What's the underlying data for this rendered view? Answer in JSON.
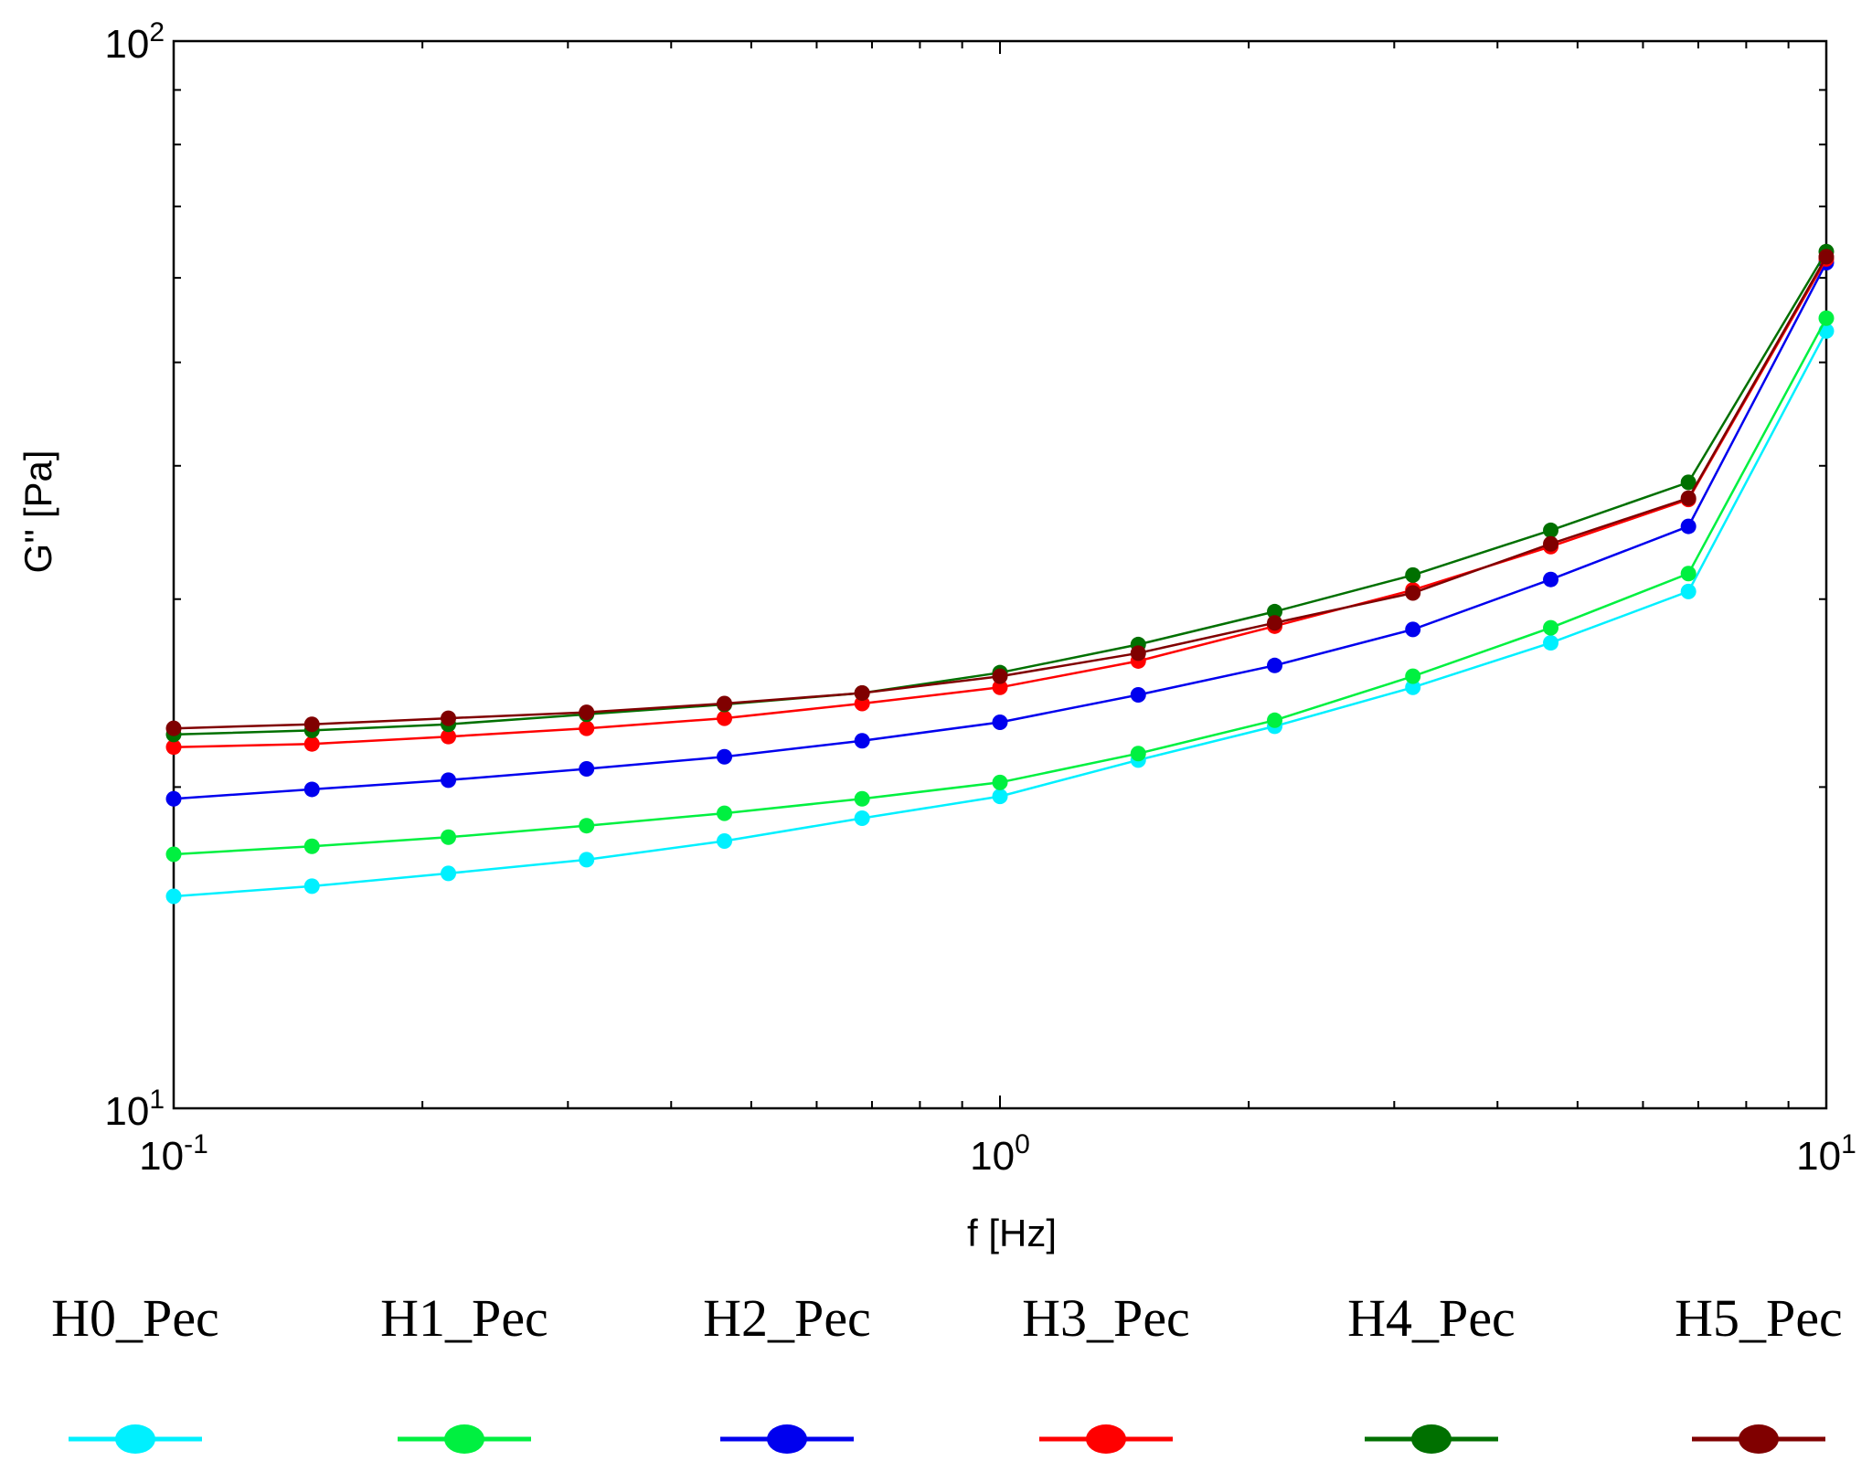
{
  "chart_data": {
    "type": "line",
    "title": "",
    "xlabel": "f [Hz]",
    "ylabel": "G'' [Pa]",
    "xscale": "log",
    "yscale": "log",
    "xlim": [
      0.1,
      10
    ],
    "ylim": [
      10,
      100
    ],
    "x_ticks": [
      {
        "base": "10",
        "exp": "-1",
        "value": 0.1
      },
      {
        "base": "10",
        "exp": "0",
        "value": 1
      },
      {
        "base": "10",
        "exp": "1",
        "value": 10
      }
    ],
    "y_ticks": [
      {
        "base": "10",
        "exp": "1",
        "value": 10
      },
      {
        "base": "10",
        "exp": "2",
        "value": 100
      }
    ],
    "x": [
      0.1,
      0.147,
      0.215,
      0.316,
      0.464,
      0.681,
      1.0,
      1.47,
      2.15,
      3.16,
      4.64,
      6.81,
      10.0
    ],
    "legend_position": "bottom",
    "series": [
      {
        "name": "H0_Pec",
        "color": "#00f0ff",
        "values": [
          15.8,
          16.15,
          16.6,
          17.1,
          17.8,
          18.7,
          19.6,
          21.2,
          22.8,
          24.8,
          27.3,
          30.5,
          53.5
        ]
      },
      {
        "name": "H1_Pec",
        "color": "#00f040",
        "values": [
          17.3,
          17.6,
          17.95,
          18.4,
          18.9,
          19.5,
          20.2,
          21.5,
          23.1,
          25.4,
          28.2,
          31.7,
          55.0
        ]
      },
      {
        "name": "H2_Pec",
        "color": "#0000ee",
        "values": [
          19.5,
          19.9,
          20.3,
          20.8,
          21.35,
          22.1,
          23.0,
          24.4,
          26.0,
          28.1,
          31.3,
          35.1,
          62.0
        ]
      },
      {
        "name": "H3_Pec",
        "color": "#ff0000",
        "values": [
          21.8,
          21.95,
          22.3,
          22.7,
          23.2,
          23.95,
          24.8,
          26.25,
          28.3,
          30.6,
          33.6,
          37.2,
          62.5
        ]
      },
      {
        "name": "H4_Pec",
        "color": "#007000",
        "values": [
          22.4,
          22.6,
          22.9,
          23.4,
          23.9,
          24.5,
          25.6,
          27.2,
          29.2,
          31.6,
          34.8,
          38.6,
          63.5
        ]
      },
      {
        "name": "H5_Pec",
        "color": "#800000",
        "values": [
          22.7,
          22.9,
          23.2,
          23.5,
          23.95,
          24.5,
          25.4,
          26.7,
          28.5,
          30.4,
          33.8,
          37.3,
          62.8
        ]
      }
    ]
  }
}
